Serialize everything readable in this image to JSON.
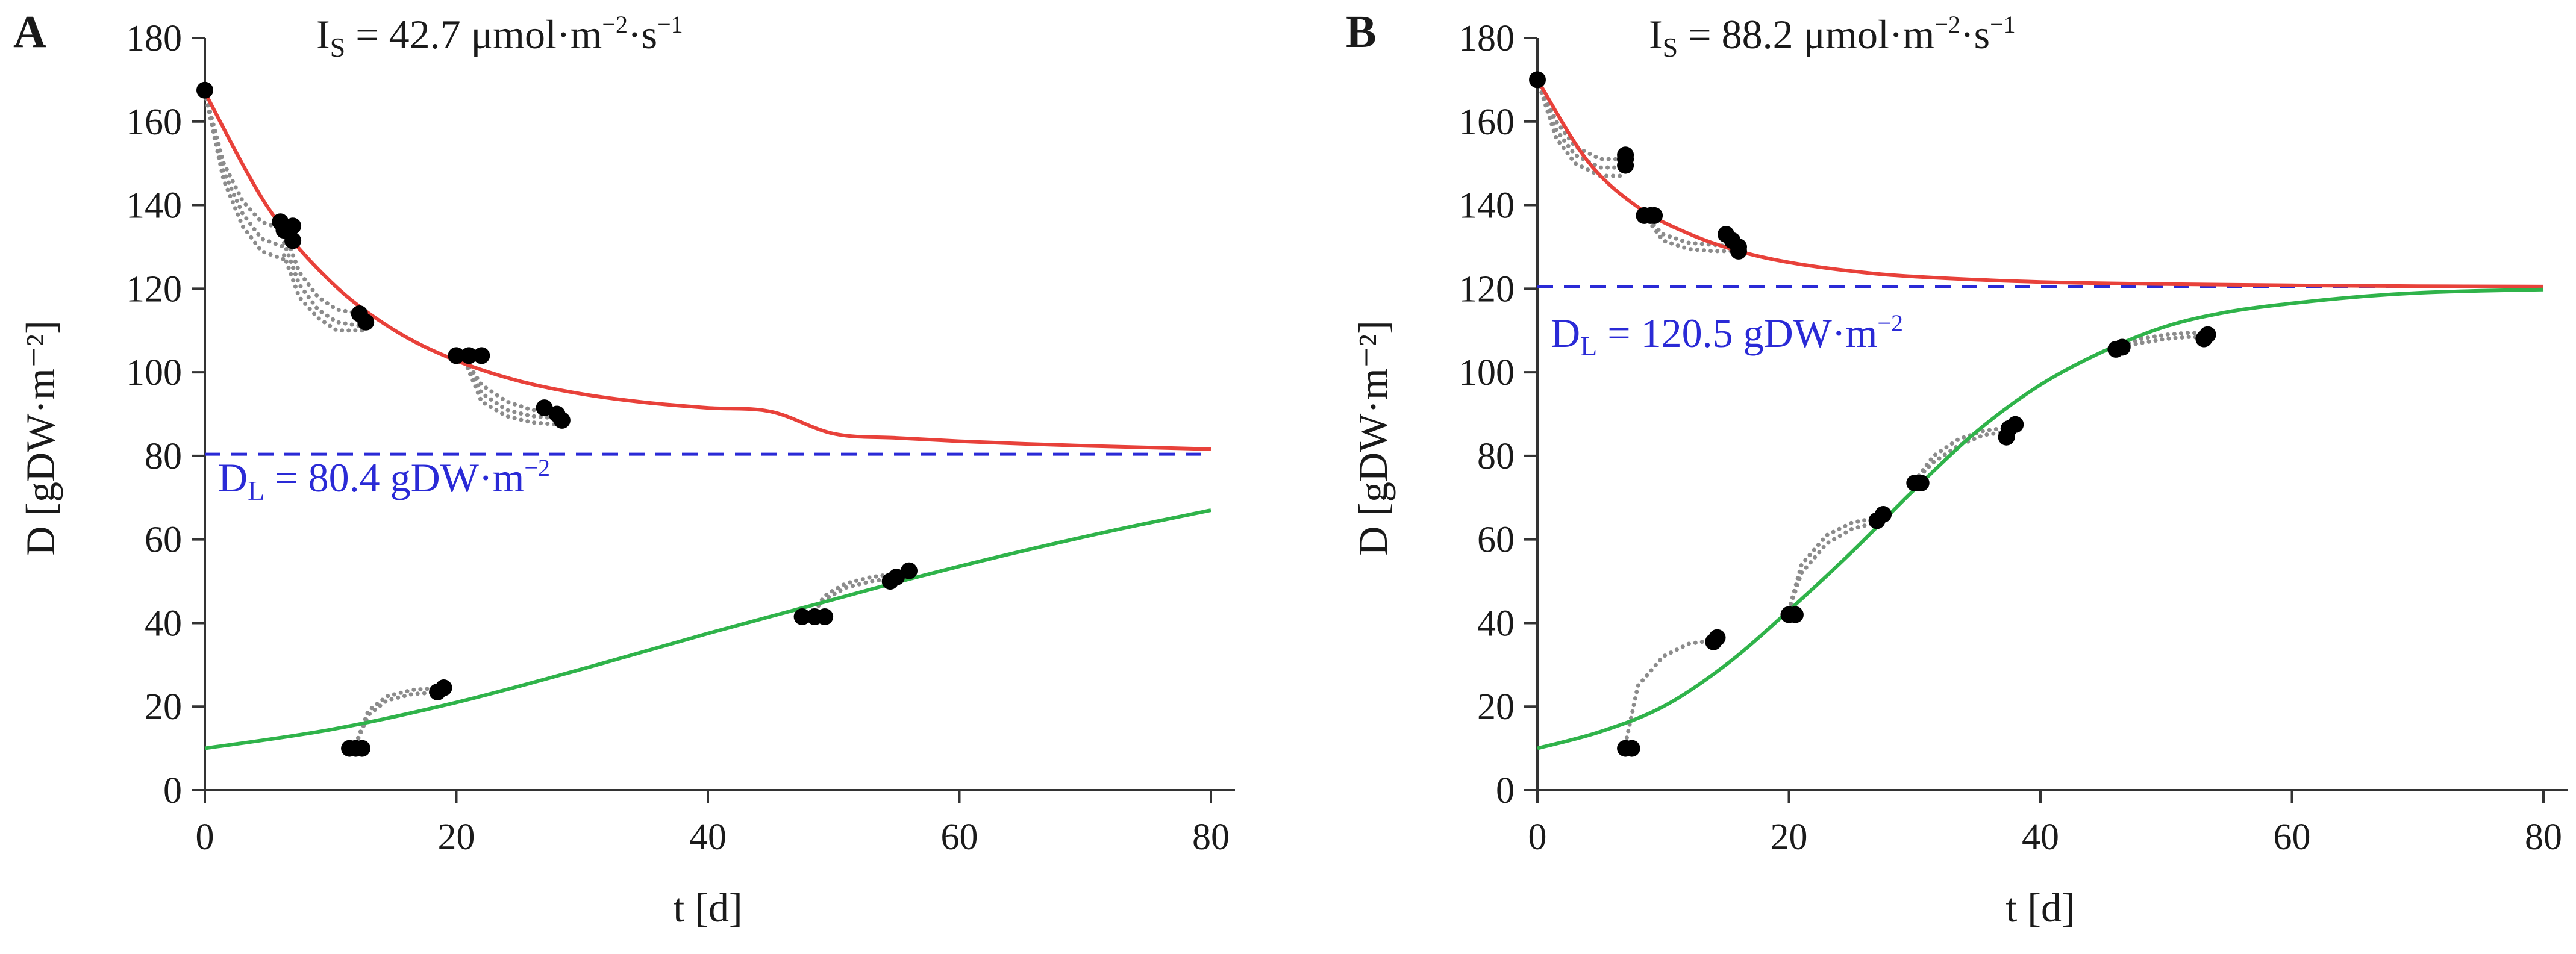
{
  "chart_data": [
    {
      "type": "line",
      "panel": "A",
      "xlabel": "t [d]",
      "ylabel": "D [gDW·m⁻²]",
      "xlim": [
        0,
        80
      ],
      "ylim": [
        0,
        180
      ],
      "xticks": [
        0,
        20,
        40,
        60,
        80
      ],
      "yticks": [
        0,
        20,
        40,
        60,
        80,
        100,
        120,
        140,
        160,
        180
      ],
      "intensity": {
        "base": "I",
        "sub": "S",
        "rest": " = 42.7 μmol·m",
        "sup1": "−2",
        "mid": "·s",
        "sup2": "−1"
      },
      "light_limit_label": {
        "base": "D",
        "sub": "L",
        "rest": " = 80.4 gDW·m",
        "sup": "−2"
      },
      "colors": {
        "decline": "#e8413a",
        "growth": "#2fb34a",
        "limit": "#2a2ad6",
        "points": "#000000",
        "dots": "#8c8c8c"
      },
      "series": [
        {
          "name": "decline-fit",
          "kind": "line",
          "color": "#e8413a",
          "x": [
            0,
            5,
            10,
            15,
            20,
            25,
            30,
            35,
            40,
            45,
            50,
            55,
            60,
            65,
            70,
            75,
            80
          ],
          "y": [
            167,
            139.5,
            121.7,
            110.2,
            102.8,
            97.9,
            94.8,
            92.8,
            91.5,
            90.6,
            85.3,
            84.3,
            83.5,
            82.9,
            82.4,
            82.0,
            81.6
          ]
        },
        {
          "name": "growth-fit",
          "kind": "line",
          "color": "#2fb34a",
          "x": [
            0,
            10,
            20,
            30,
            40,
            48,
            56,
            64,
            72,
            80
          ],
          "y": [
            10,
            14.5,
            21,
            29,
            37.5,
            44,
            50.5,
            56.5,
            62,
            67
          ]
        },
        {
          "name": "light-limit",
          "kind": "dashed",
          "color": "#2a2ad6",
          "x": [
            0,
            80
          ],
          "y": [
            80.4,
            80.4
          ]
        },
        {
          "name": "measured-decline",
          "kind": "points",
          "x": [
            0,
            6,
            6.3,
            7,
            7,
            12.3,
            12.8,
            20,
            21,
            22,
            27,
            28,
            28.4
          ],
          "y": [
            167.5,
            136,
            134,
            131.5,
            135,
            114,
            112,
            104,
            104,
            104,
            91.5,
            90,
            88.5
          ]
        },
        {
          "name": "measured-growth",
          "kind": "points",
          "x": [
            11.5,
            12,
            12.5,
            18.5,
            19,
            47.5,
            48.5,
            49.3,
            54.5,
            55,
            56
          ],
          "y": [
            10,
            10,
            10,
            23.5,
            24.5,
            41.5,
            41.5,
            41.5,
            50,
            51,
            52.5
          ]
        },
        {
          "name": "simulations",
          "kind": "dotted",
          "color": "#8c8c8c",
          "curves": [
            {
              "x": [
                0,
                1.5,
                3,
                4.5,
                6.3
              ],
              "y": [
                167,
                150,
                141,
                136,
                134
              ]
            },
            {
              "x": [
                0,
                1.5,
                3,
                4.5,
                6.3
              ],
              "y": [
                167,
                148,
                138,
                132,
                130
              ]
            },
            {
              "x": [
                0,
                1.5,
                3,
                4.5,
                6.3
              ],
              "y": [
                167,
                146,
                135,
                129,
                127
              ]
            },
            {
              "x": [
                6.3,
                7.5,
                9,
                10.5,
                12.5
              ],
              "y": [
                134,
                124,
                118,
                115,
                114
              ]
            },
            {
              "x": [
                6.3,
                7.5,
                9,
                10.5,
                12.5
              ],
              "y": [
                131,
                121,
                115,
                112,
                111
              ]
            },
            {
              "x": [
                6.3,
                7.5,
                9,
                10.5,
                12.5
              ],
              "y": [
                128,
                118,
                113,
                110,
                110
              ]
            },
            {
              "x": [
                20.5,
                22,
                24,
                26,
                28
              ],
              "y": [
                104,
                97,
                93,
                91,
                90.5
              ]
            },
            {
              "x": [
                20.5,
                22,
                24,
                26,
                28
              ],
              "y": [
                104,
                95,
                91,
                89.5,
                89
              ]
            },
            {
              "x": [
                20.5,
                22,
                24,
                26,
                28
              ],
              "y": [
                104,
                93,
                89.5,
                88,
                87.5
              ]
            },
            {
              "x": [
                12,
                13,
                14.5,
                16.5,
                19
              ],
              "y": [
                11,
                19,
                22.5,
                24,
                24.5
              ]
            },
            {
              "x": [
                12,
                13,
                14.5,
                16.5,
                19
              ],
              "y": [
                11,
                18,
                21.5,
                23,
                23.5
              ]
            },
            {
              "x": [
                48,
                49.5,
                51,
                53,
                55.5
              ],
              "y": [
                42,
                47,
                49.5,
                51,
                52
              ]
            },
            {
              "x": [
                48,
                49.5,
                51,
                53,
                55.5
              ],
              "y": [
                42,
                46,
                48.5,
                50,
                51
              ]
            }
          ]
        }
      ]
    },
    {
      "type": "line",
      "panel": "B",
      "xlabel": "t [d]",
      "ylabel": "D [gDW·m⁻²]",
      "xlim": [
        0,
        80
      ],
      "ylim": [
        0,
        180
      ],
      "xticks": [
        0,
        20,
        40,
        60,
        80
      ],
      "yticks": [
        0,
        20,
        40,
        60,
        80,
        100,
        120,
        140,
        160,
        180
      ],
      "intensity": {
        "base": "I",
        "sub": "S",
        "rest": " = 88.2 μmol·m",
        "sup1": "−2",
        "mid": "·s",
        "sup2": "−1"
      },
      "light_limit_label": {
        "base": "D",
        "sub": "L",
        "rest": " = 120.5 gDW·m",
        "sup": "−2"
      },
      "colors": {
        "decline": "#e8413a",
        "growth": "#2fb34a",
        "limit": "#2a2ad6",
        "points": "#000000",
        "dots": "#8c8c8c"
      },
      "series": [
        {
          "name": "decline-fit",
          "kind": "line",
          "color": "#e8413a",
          "x": [
            0,
            4,
            8,
            12,
            16,
            20,
            25,
            30,
            40,
            50,
            60,
            70,
            80
          ],
          "y": [
            170,
            150.5,
            139.5,
            133.2,
            129.0,
            126.3,
            124.2,
            122.9,
            121.6,
            121.1,
            120.8,
            120.6,
            120.5
          ]
        },
        {
          "name": "growth-fit",
          "kind": "line",
          "color": "#2fb34a",
          "x": [
            0,
            5,
            10,
            15,
            20,
            25,
            30,
            35,
            40,
            45,
            50,
            55,
            60,
            65,
            70,
            75,
            80
          ],
          "y": [
            10,
            14,
            20,
            30,
            43,
            57,
            72,
            86,
            97,
            105,
            111,
            114.5,
            116.5,
            118,
            119,
            119.5,
            119.8
          ]
        },
        {
          "name": "light-limit",
          "kind": "dashed",
          "color": "#2a2ad6",
          "x": [
            0,
            80
          ],
          "y": [
            120.5,
            120.5
          ]
        },
        {
          "name": "measured-decline",
          "kind": "points",
          "x": [
            0,
            7,
            7,
            7,
            8.5,
            9,
            9.3,
            15,
            15.5,
            16,
            16
          ],
          "y": [
            170,
            149.5,
            151,
            152,
            137.5,
            137.5,
            137.5,
            133,
            131.5,
            130,
            129
          ]
        },
        {
          "name": "measured-growth",
          "kind": "points",
          "x": [
            7,
            7.5,
            14,
            14.3,
            20,
            20.5,
            27,
            27.5,
            30,
            30.5,
            37.3,
            37.5,
            38,
            46,
            46.5,
            53,
            53.3
          ],
          "y": [
            10,
            10,
            35.5,
            36.5,
            42,
            42,
            64.5,
            66,
            73.5,
            73.5,
            84.5,
            86.5,
            87.5,
            105.5,
            106,
            108,
            109
          ]
        },
        {
          "name": "simulations",
          "kind": "dotted",
          "color": "#8c8c8c",
          "curves": [
            {
              "x": [
                0,
                1.5,
                3,
                5,
                7
              ],
              "y": [
                170,
                160,
                154,
                151,
                151
              ]
            },
            {
              "x": [
                0,
                1.5,
                3,
                5,
                7
              ],
              "y": [
                170,
                158,
                152,
                149,
                149
              ]
            },
            {
              "x": [
                0,
                1.5,
                3,
                5,
                7
              ],
              "y": [
                170,
                156,
                150,
                147,
                147
              ]
            },
            {
              "x": [
                8.5,
                10,
                12,
                14,
                16
              ],
              "y": [
                137.5,
                133,
                131,
                130.5,
                130
              ]
            },
            {
              "x": [
                8.5,
                10,
                12,
                14,
                16
              ],
              "y": [
                137.5,
                131.5,
                129.5,
                129,
                129
              ]
            },
            {
              "x": [
                7,
                8,
                10,
                12,
                14.2
              ],
              "y": [
                11,
                25,
                32,
                35,
                36
              ]
            },
            {
              "x": [
                20,
                21,
                23,
                25,
                27.5
              ],
              "y": [
                43,
                54,
                61,
                64,
                65.5
              ]
            },
            {
              "x": [
                20,
                21,
                23,
                25,
                27.5
              ],
              "y": [
                43,
                52,
                59,
                62.5,
                64.5
              ]
            },
            {
              "x": [
                30,
                31.5,
                33.5,
                35.5,
                38
              ],
              "y": [
                74,
                80,
                84,
                86,
                87
              ]
            },
            {
              "x": [
                30,
                31.5,
                33.5,
                35.5,
                38
              ],
              "y": [
                74,
                78.5,
                82.5,
                85,
                86
              ]
            },
            {
              "x": [
                46,
                48,
                50,
                52,
                53.2
              ],
              "y": [
                106,
                108,
                109,
                109.5,
                109
              ]
            },
            {
              "x": [
                46,
                48,
                50,
                52,
                53.2
              ],
              "y": [
                106,
                107,
                108,
                108.5,
                108
              ]
            }
          ]
        }
      ]
    }
  ]
}
